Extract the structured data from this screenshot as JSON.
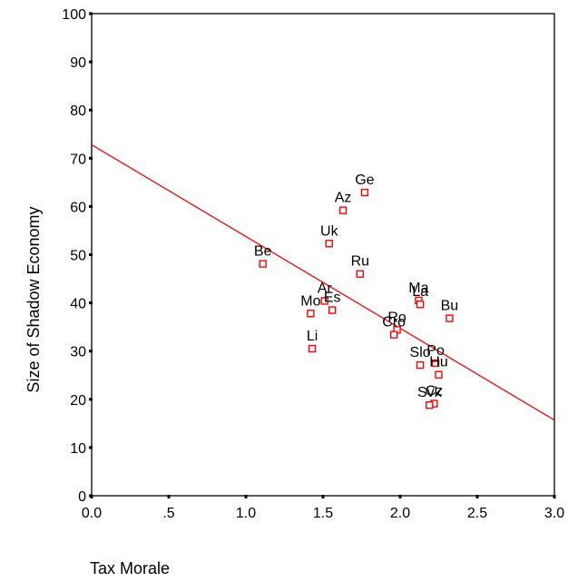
{
  "chart_data": {
    "type": "scatter",
    "title": "",
    "xlabel": "Tax Morale",
    "ylabel": "Size of Shadow Economy",
    "xlim": [
      0.0,
      3.0
    ],
    "ylim": [
      0,
      100
    ],
    "x_ticks": [
      {
        "value": 0.0,
        "label": "0.0"
      },
      {
        "value": 0.5,
        "label": ".5"
      },
      {
        "value": 1.0,
        "label": "1.0"
      },
      {
        "value": 1.5,
        "label": "1.5"
      },
      {
        "value": 2.0,
        "label": "2.0"
      },
      {
        "value": 2.5,
        "label": "2.5"
      },
      {
        "value": 3.0,
        "label": "3.0"
      }
    ],
    "y_ticks": [
      {
        "value": 0,
        "label": "0"
      },
      {
        "value": 10,
        "label": "10"
      },
      {
        "value": 20,
        "label": "20"
      },
      {
        "value": 30,
        "label": "30"
      },
      {
        "value": 40,
        "label": "40"
      },
      {
        "value": 50,
        "label": "50"
      },
      {
        "value": 60,
        "label": "60"
      },
      {
        "value": 70,
        "label": "70"
      },
      {
        "value": 80,
        "label": "80"
      },
      {
        "value": 90,
        "label": "90"
      },
      {
        "value": 100,
        "label": "100"
      }
    ],
    "grid": false,
    "points": [
      {
        "label": "Be",
        "x": 1.11,
        "y": 48.1
      },
      {
        "label": "Ge",
        "x": 1.77,
        "y": 62.9
      },
      {
        "label": "Az",
        "x": 1.63,
        "y": 59.2
      },
      {
        "label": "Uk",
        "x": 1.54,
        "y": 52.3
      },
      {
        "label": "Ru",
        "x": 1.74,
        "y": 46.0
      },
      {
        "label": "Ar",
        "x": 1.51,
        "y": 40.4
      },
      {
        "label": "Mo",
        "x": 1.42,
        "y": 37.8
      },
      {
        "label": "Es",
        "x": 1.56,
        "y": 38.5
      },
      {
        "label": "Li",
        "x": 1.43,
        "y": 30.5
      },
      {
        "label": "Ma",
        "x": 2.12,
        "y": 40.5
      },
      {
        "label": "La",
        "x": 2.13,
        "y": 39.7
      },
      {
        "label": "Bu",
        "x": 2.32,
        "y": 36.8
      },
      {
        "label": "Ro",
        "x": 1.98,
        "y": 34.4
      },
      {
        "label": "Cro",
        "x": 1.96,
        "y": 33.4
      },
      {
        "label": "Slo",
        "x": 2.13,
        "y": 27.1
      },
      {
        "label": "Po",
        "x": 2.23,
        "y": 27.5
      },
      {
        "label": "Hu",
        "x": 2.25,
        "y": 25.1
      },
      {
        "label": "Cz",
        "x": 2.22,
        "y": 19.1
      },
      {
        "label": "Svk",
        "x": 2.19,
        "y": 18.8
      }
    ],
    "fit_line": {
      "x": [
        0.0,
        3.0
      ],
      "y": [
        72.8,
        15.7
      ]
    },
    "colors": {
      "points": "#ff0000",
      "fit_line": "#ff0000",
      "axes": "#000000"
    }
  }
}
